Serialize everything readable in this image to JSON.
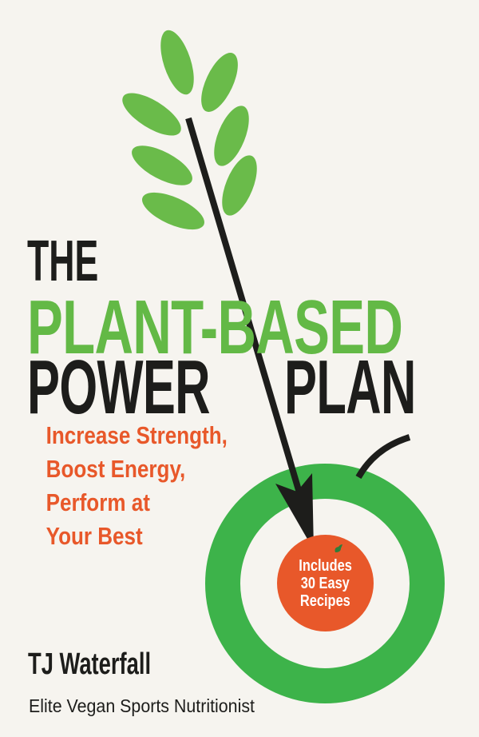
{
  "cover": {
    "title_line1": "THE",
    "title_line2": "PLANT-BASED",
    "title_line3a": "POWER",
    "title_line3b": "PLAN",
    "subtitle_lines": [
      "Increase Strength,",
      "Boost Energy,",
      "Perform at",
      "Your Best"
    ],
    "badge_lines": [
      "Includes",
      "30 Easy",
      "Recipes"
    ],
    "author": "TJ Waterfall",
    "author_tagline": "Elite Vegan Sports Nutritionist"
  },
  "colors": {
    "background": "#f6f4ef",
    "title_green": "#63b946",
    "leaf_green": "#6abb4a",
    "ring_green": "#3db34a",
    "accent_orange": "#e8582a",
    "text_black": "#1d1d1b"
  },
  "icons": [
    "wheat-sprig-icon",
    "arrow-icon",
    "apple-target-icon"
  ]
}
